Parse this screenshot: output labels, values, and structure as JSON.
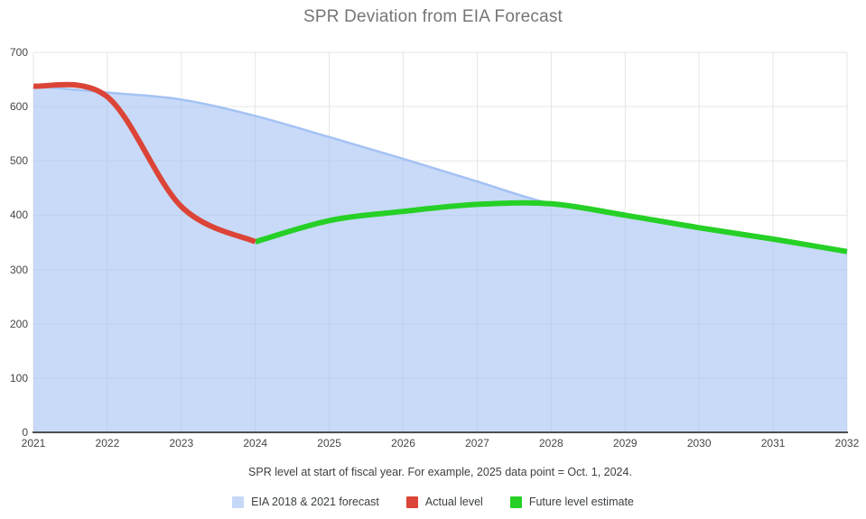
{
  "title": "SPR Deviation from EIA Forecast",
  "caption": "SPR level at start of fiscal year. For example, 2025 data point = Oct. 1, 2024.",
  "legend": [
    {
      "label": "EIA 2018 & 2021 forecast",
      "color": "#c5d8f7"
    },
    {
      "label": "Actual level",
      "color": "#db4437"
    },
    {
      "label": "Future level estimate",
      "color": "#26d026"
    }
  ],
  "colors": {
    "area_fill": "#a4c2f4",
    "area_stroke": "#a4c2f4",
    "actual_line": "#db4437",
    "future_line": "#26d026",
    "gridline": "#e6e6e6",
    "baseline": "#4f4f4f",
    "title_text": "#757575",
    "tick_text": "#464646"
  },
  "chart_data": {
    "type": "area",
    "title": "SPR Deviation from EIA Forecast",
    "xlabel": "",
    "ylabel": "",
    "x": [
      2021,
      2022,
      2023,
      2024,
      2025,
      2026,
      2027,
      2028,
      2029,
      2030,
      2031,
      2032
    ],
    "xlim": [
      2021,
      2032
    ],
    "ylim": [
      0,
      700
    ],
    "yticks": [
      0,
      100,
      200,
      300,
      400,
      500,
      600,
      700
    ],
    "grid": true,
    "legend_position": "bottom",
    "series": [
      {
        "name": "EIA 2018 & 2021 forecast",
        "type": "area",
        "color": "#a4c2f4",
        "fill_opacity": 0.6,
        "values": [
          638,
          626,
          613,
          583,
          544,
          504,
          462,
          421,
          400,
          377,
          355,
          333
        ]
      },
      {
        "name": "Actual level",
        "type": "line",
        "color": "#db4437",
        "values": [
          638,
          618,
          416,
          351,
          null,
          null,
          null,
          null,
          null,
          null,
          null,
          null
        ]
      },
      {
        "name": "Future level estimate",
        "type": "line",
        "color": "#26d026",
        "values": [
          null,
          null,
          null,
          351,
          390,
          407,
          420,
          421,
          400,
          377,
          356,
          333
        ]
      }
    ]
  }
}
